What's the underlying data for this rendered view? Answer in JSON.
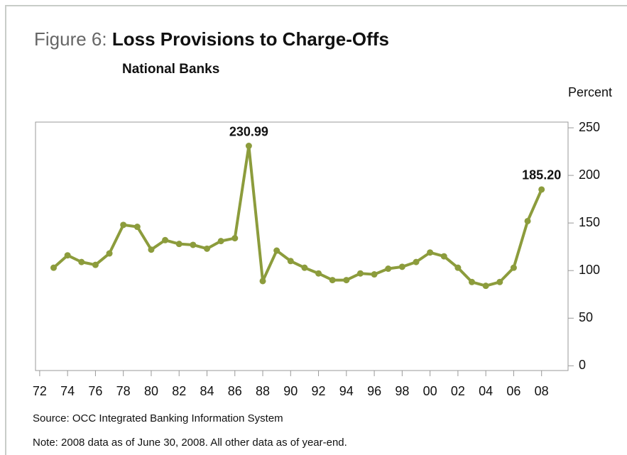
{
  "chart_data": {
    "type": "line",
    "figure_label": "Figure 6:",
    "title": "Loss Provisions to Charge-Offs",
    "subtitle": "National Banks",
    "y_label": "Percent",
    "source": "Source: OCC Integrated Banking Information System",
    "note": "Note: 2008 data as of June 30, 2008. All other data as of year-end.",
    "x": [
      1973,
      1974,
      1975,
      1976,
      1977,
      1978,
      1979,
      1980,
      1981,
      1982,
      1983,
      1984,
      1985,
      1986,
      1987,
      1988,
      1989,
      1990,
      1991,
      1992,
      1993,
      1994,
      1995,
      1996,
      1997,
      1998,
      1999,
      2000,
      2001,
      2002,
      2003,
      2004,
      2005,
      2006,
      2007,
      2008
    ],
    "series": [
      {
        "color": "#8c9c3c",
        "values": [
          103,
          116,
          109,
          106,
          118,
          148,
          146,
          122,
          132,
          128,
          127,
          123,
          131,
          134,
          230.99,
          89,
          121,
          110,
          103,
          97,
          90,
          90,
          97,
          96,
          102,
          104,
          109,
          119,
          115,
          103,
          88,
          84,
          88,
          103,
          152,
          185.2
        ],
        "value_labels": [
          null,
          null,
          null,
          null,
          null,
          null,
          null,
          null,
          null,
          null,
          null,
          null,
          null,
          null,
          "230.99",
          null,
          null,
          null,
          null,
          null,
          null,
          null,
          null,
          null,
          null,
          null,
          null,
          null,
          null,
          null,
          null,
          null,
          null,
          null,
          null,
          "185.20"
        ]
      }
    ],
    "xlim": [
      1971.7,
      2009.9
    ],
    "xticks": [
      {
        "value": 1972,
        "label": "72"
      },
      {
        "value": 1974,
        "label": "74"
      },
      {
        "value": 1976,
        "label": "76"
      },
      {
        "value": 1978,
        "label": "78"
      },
      {
        "value": 1980,
        "label": "80"
      },
      {
        "value": 1982,
        "label": "82"
      },
      {
        "value": 1984,
        "label": "84"
      },
      {
        "value": 1986,
        "label": "86"
      },
      {
        "value": 1988,
        "label": "88"
      },
      {
        "value": 1990,
        "label": "90"
      },
      {
        "value": 1992,
        "label": "92"
      },
      {
        "value": 1994,
        "label": "94"
      },
      {
        "value": 1996,
        "label": "96"
      },
      {
        "value": 1998,
        "label": "98"
      },
      {
        "value": 2000,
        "label": "00"
      },
      {
        "value": 2002,
        "label": "02"
      },
      {
        "value": 2004,
        "label": "04"
      },
      {
        "value": 2006,
        "label": "06"
      },
      {
        "value": 2008,
        "label": "08"
      }
    ],
    "ylim": [
      -5,
      256
    ],
    "yticks": [
      0,
      50,
      100,
      150,
      200,
      250
    ]
  }
}
